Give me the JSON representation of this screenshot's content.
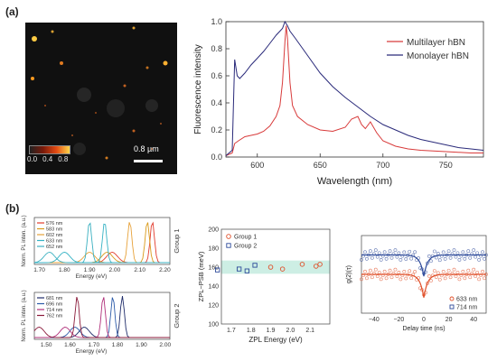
{
  "panel_a": {
    "label": "(a)",
    "micrograph": {
      "colorbar_ticks": [
        "0.0",
        "0.4",
        "0.8"
      ],
      "scale_bar": "0.8 µm"
    },
    "spectrum": {
      "type": "line",
      "xlabel": "Wavelength (nm)",
      "ylabel": "Fluorescence intensity",
      "xlim": [
        575,
        780
      ],
      "ylim": [
        0,
        1.0
      ],
      "xticks": [
        600,
        650,
        700,
        750
      ],
      "yticks": [
        0.0,
        0.2,
        0.4,
        0.6,
        0.8,
        1.0
      ],
      "legend_position": "top-right",
      "series": [
        {
          "name": "Multilayer hBN",
          "color": "#d83a3a",
          "x": [
            575,
            580,
            582,
            585,
            590,
            595,
            600,
            605,
            610,
            615,
            618,
            620,
            622,
            623,
            624,
            626,
            628,
            632,
            640,
            650,
            660,
            670,
            675,
            680,
            683,
            686,
            690,
            695,
            700,
            710,
            720,
            730,
            750,
            770,
            780
          ],
          "y": [
            0.01,
            0.03,
            0.1,
            0.12,
            0.15,
            0.16,
            0.17,
            0.19,
            0.23,
            0.3,
            0.38,
            0.55,
            0.85,
            0.97,
            0.88,
            0.55,
            0.38,
            0.3,
            0.24,
            0.2,
            0.19,
            0.22,
            0.28,
            0.3,
            0.24,
            0.21,
            0.26,
            0.18,
            0.12,
            0.08,
            0.06,
            0.05,
            0.04,
            0.03,
            0.03
          ]
        },
        {
          "name": "Monolayer hBN",
          "color": "#2a2a7a",
          "x": [
            575,
            580,
            582,
            584,
            586,
            590,
            595,
            600,
            605,
            610,
            615,
            620,
            622,
            624,
            626,
            630,
            640,
            650,
            660,
            670,
            680,
            690,
            700,
            710,
            720,
            730,
            740,
            750,
            760,
            770,
            780
          ],
          "y": [
            0.01,
            0.05,
            0.72,
            0.6,
            0.58,
            0.62,
            0.68,
            0.73,
            0.78,
            0.84,
            0.9,
            0.95,
            1.0,
            0.97,
            0.93,
            0.88,
            0.75,
            0.62,
            0.52,
            0.44,
            0.37,
            0.3,
            0.24,
            0.2,
            0.16,
            0.13,
            0.11,
            0.09,
            0.07,
            0.06,
            0.05
          ]
        }
      ]
    }
  },
  "panel_b": {
    "label": "(b)",
    "group1": {
      "label": "Group 1",
      "ylabel": "Norm. PL inten. (a.u.)",
      "xlabel": "Energy (eV)",
      "xticks": [
        "1.70",
        "1.80",
        "1.90",
        "2.00",
        "2.10",
        "2.20"
      ],
      "legend": [
        "576 nm",
        "583 nm",
        "602 nm",
        "633 nm",
        "652 nm"
      ],
      "peaks_eV": [
        2.15,
        2.13,
        2.06,
        1.96,
        1.9
      ],
      "colors": [
        "#e23b2c",
        "#d99a1a",
        "#e7a23a",
        "#35b2c4",
        "#3ab0c0"
      ]
    },
    "group2": {
      "label": "Group 2",
      "ylabel": "Norm. PL inten. (a.u.)",
      "xlabel": "Energy (eV)",
      "xticks": [
        "1.50",
        "1.60",
        "1.70",
        "1.80",
        "1.90",
        "2.00"
      ],
      "legend": [
        "681 nm",
        "696 nm",
        "714 nm",
        "762 nm"
      ],
      "peaks_eV": [
        1.82,
        1.78,
        1.74,
        1.63
      ],
      "colors": [
        "#1f2c6a",
        "#2b5aa8",
        "#b0307a",
        "#8a1a3a"
      ]
    },
    "zpl_psb": {
      "type": "scatter",
      "xlabel": "ZPL Energy (eV)",
      "ylabel": "ZPL−PSB (meV)",
      "xlim": [
        1.65,
        2.2
      ],
      "ylim": [
        100,
        200
      ],
      "xticks": [
        "1.7",
        "1.8",
        "1.9",
        "2.0",
        "2.1"
      ],
      "yticks": [
        "100",
        "120",
        "140",
        "160",
        "180",
        "200"
      ],
      "band": [
        153,
        167
      ],
      "legend": [
        "Group 1",
        "Group 2"
      ],
      "group1": {
        "x": [
          1.9,
          1.96,
          2.06,
          2.13,
          2.15
        ],
        "y": [
          160,
          158,
          163,
          161,
          163
        ]
      },
      "group2": {
        "x": [
          1.63,
          1.74,
          1.78,
          1.82
        ],
        "y": [
          157,
          158,
          156,
          162
        ]
      }
    },
    "g2": {
      "type": "scatter",
      "xlabel": "Delay time (ns)",
      "ylabel": "g(2)(τ)",
      "xticks": [
        "−40",
        "−20",
        "0",
        "20",
        "40"
      ],
      "legend": [
        "633 nm",
        "714 nm"
      ],
      "baselines": [
        1.0,
        1.5
      ],
      "dips": [
        0.4,
        0.95
      ]
    }
  }
}
